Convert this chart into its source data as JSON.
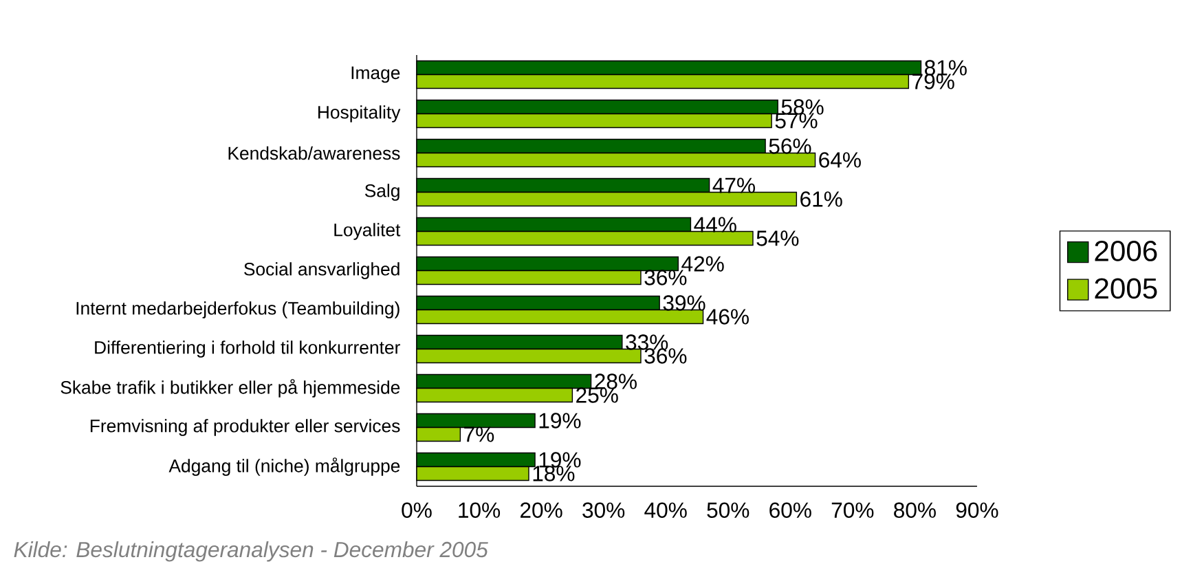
{
  "chart_data": {
    "type": "bar",
    "orientation": "horizontal",
    "categories": [
      "Image",
      "Hospitality",
      "Kendskab/awareness",
      "Salg",
      "Loyalitet",
      "Social ansvarlighed",
      "Internt medarbejderfokus (Teambuilding)",
      "Differentiering i forhold til konkurrenter",
      "Skabe trafik i butikker eller på hjemmeside",
      "Fremvisning af produkter eller services",
      "Adgang til (niche) målgruppe"
    ],
    "series": [
      {
        "name": "2006",
        "color": "#006600",
        "values": [
          81,
          58,
          56,
          47,
          44,
          42,
          39,
          33,
          28,
          19,
          19
        ],
        "value_labels": [
          "81%",
          "58%",
          "56%",
          "47%",
          "44%",
          "42%",
          "39%",
          "33%",
          "28%",
          "19%",
          "19%"
        ]
      },
      {
        "name": "2005",
        "color": "#99cc00",
        "values": [
          79,
          57,
          64,
          61,
          54,
          36,
          46,
          36,
          25,
          7,
          18
        ],
        "value_labels": [
          "79%",
          "57%",
          "64%",
          "61%",
          "54%",
          "36%",
          "46%",
          "36%",
          "25%",
          "7%",
          "18%"
        ]
      }
    ],
    "xlim": [
      0,
      90
    ],
    "xticks": [
      {
        "value": 0,
        "label": "0%"
      },
      {
        "value": 10,
        "label": "10%"
      },
      {
        "value": 20,
        "label": "20%"
      },
      {
        "value": 30,
        "label": "30%"
      },
      {
        "value": 40,
        "label": "40%"
      },
      {
        "value": 50,
        "label": "50%"
      },
      {
        "value": 60,
        "label": "60%"
      },
      {
        "value": 70,
        "label": "70%"
      },
      {
        "value": 80,
        "label": "80%"
      },
      {
        "value": 90,
        "label": "90%"
      }
    ],
    "grid": false,
    "legend": "right",
    "annotations": [
      "Kilde: Beslutningtageranalysen - December 2005"
    ]
  }
}
